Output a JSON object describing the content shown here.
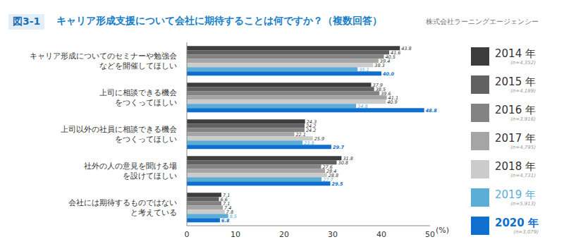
{
  "chart_data": {
    "type": "bar",
    "orientation": "horizontal",
    "badge": "図3-1",
    "title": "キャリア形成支援について会社に期待することは何ですか？（複数回答）",
    "source": "株式会社ラーニングエージェンシー",
    "xlabel": "(%)",
    "categories": [
      "キャリア形成についてのセミナーや勉強会\nなどを開催してほしい",
      "上司に相談できる機会\nをつくってほしい",
      "上司以外の社員に相談できる機会\nをつくってほしい",
      "社外の人の意見を聞ける場\nを設けてほしい",
      "会社には期待するものではない\nと考えている"
    ],
    "series": [
      {
        "name": "2014 年",
        "n_label": "(n=4,352)",
        "color": "#3d3d3d",
        "values": [
          43.8,
          37.9,
          24.3,
          31.8,
          7.1
        ]
      },
      {
        "name": "2015 年",
        "n_label": "(n=4,189)",
        "color": "#616161",
        "values": [
          41.6,
          38.5,
          24.2,
          30.8,
          6.6
        ]
      },
      {
        "name": "2016 年",
        "n_label": "(n=3,916)",
        "color": "#838383",
        "values": [
          40.5,
          39.6,
          24.2,
          27.6,
          7.1
        ]
      },
      {
        "name": "2017 年",
        "n_label": "(n=4,795)",
        "color": "#a5a5a5",
        "values": [
          39.4,
          41.1,
          22.1,
          28.4,
          7.4
        ]
      },
      {
        "name": "2018 年",
        "n_label": "(n=4,731)",
        "color": "#cbcbcb",
        "values": [
          38.3,
          40.9,
          25.9,
          28.8,
          7.8
        ]
      },
      {
        "name": "2019 年",
        "n_label": "(n=5,913)",
        "color": "#5aaed6",
        "values": [
          35.1,
          34.8,
          23.8,
          27.7,
          8.5
        ]
      },
      {
        "name": "2020 年",
        "n_label": "(n=3,079)",
        "color": "#0f6fd0",
        "values": [
          40.0,
          48.8,
          29.7,
          29.5,
          6.8
        ],
        "value_labels": [
          "40.0",
          "48.8",
          "29.7",
          "29.5",
          "6.8"
        ]
      }
    ],
    "xlim": [
      0,
      50
    ],
    "xticks": [
      0,
      10,
      20,
      30,
      40,
      50
    ],
    "grid": false,
    "data_labels": true,
    "legend": "right"
  }
}
